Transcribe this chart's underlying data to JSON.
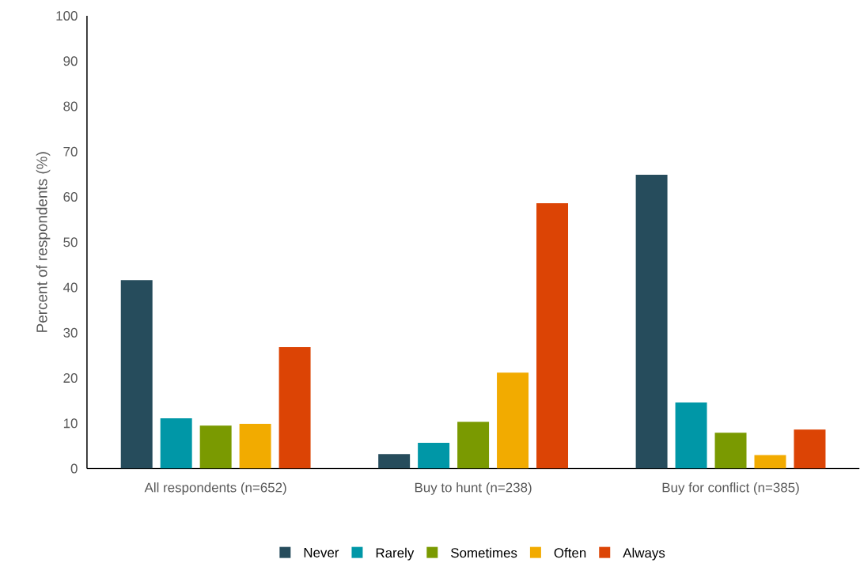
{
  "chart_data": {
    "type": "bar",
    "ylabel": "Percent of respondents (%)",
    "categories": [
      "All respondents (n=652)",
      "Buy to hunt (n=238)",
      "Buy for conflict (n=385)"
    ],
    "series": [
      {
        "name": "Never",
        "color": "#264c5c",
        "values": [
          41.6,
          3.2,
          64.9
        ]
      },
      {
        "name": "Rarely",
        "color": "#0097a7",
        "values": [
          11.1,
          5.7,
          14.6
        ]
      },
      {
        "name": "Sometimes",
        "color": "#7a9a01",
        "values": [
          9.5,
          10.3,
          7.9
        ]
      },
      {
        "name": "Often",
        "color": "#f2ab00",
        "values": [
          9.9,
          21.2,
          3.0
        ]
      },
      {
        "name": "Always",
        "color": "#dc4405",
        "values": [
          26.8,
          58.6,
          8.6
        ]
      }
    ],
    "ylim": [
      0,
      100
    ],
    "yticks": [
      0,
      10,
      20,
      30,
      40,
      50,
      60,
      70,
      80,
      90,
      100
    ],
    "grid": false,
    "legend": "bottom"
  }
}
